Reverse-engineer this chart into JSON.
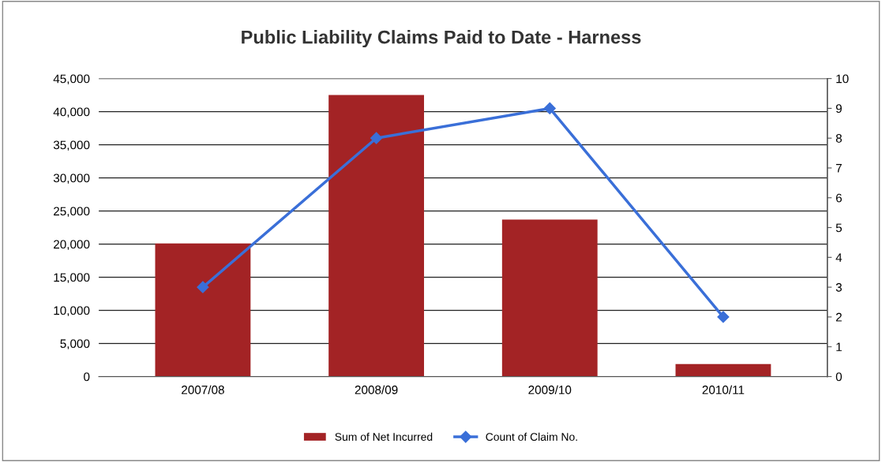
{
  "chart_data": {
    "type": "bar",
    "title": "Public Liability Claims Paid to Date - Harness",
    "categories": [
      "2007/08",
      "2008/09",
      "2009/10",
      "2010/11"
    ],
    "series": [
      {
        "name": "Sum of Net Incurred",
        "color": "#a32325",
        "values": [
          20100,
          42500,
          23700,
          1900
        ]
      },
      {
        "name": "Count of Claim No.",
        "type": "line",
        "axis": "y2",
        "color": "#3a6fd8",
        "marker": "diamond",
        "values": [
          3,
          8,
          9,
          2
        ]
      }
    ],
    "ylim": [
      0,
      45000
    ],
    "yticks": [
      {
        "value": 0,
        "label": "0"
      },
      {
        "value": 5000,
        "label": "5,000"
      },
      {
        "value": 10000,
        "label": "10,000"
      },
      {
        "value": 15000,
        "label": "15,000"
      },
      {
        "value": 20000,
        "label": "20,000"
      },
      {
        "value": 25000,
        "label": "25,000"
      },
      {
        "value": 30000,
        "label": "30,000"
      },
      {
        "value": 35000,
        "label": "35,000"
      },
      {
        "value": 40000,
        "label": "40,000"
      },
      {
        "value": 45000,
        "label": "45,000"
      }
    ],
    "y2lim": [
      0,
      10
    ],
    "y2ticks": [
      0,
      1,
      2,
      3,
      4,
      5,
      6,
      7,
      8,
      9,
      10
    ],
    "grid": "y",
    "legend": "bottom"
  }
}
